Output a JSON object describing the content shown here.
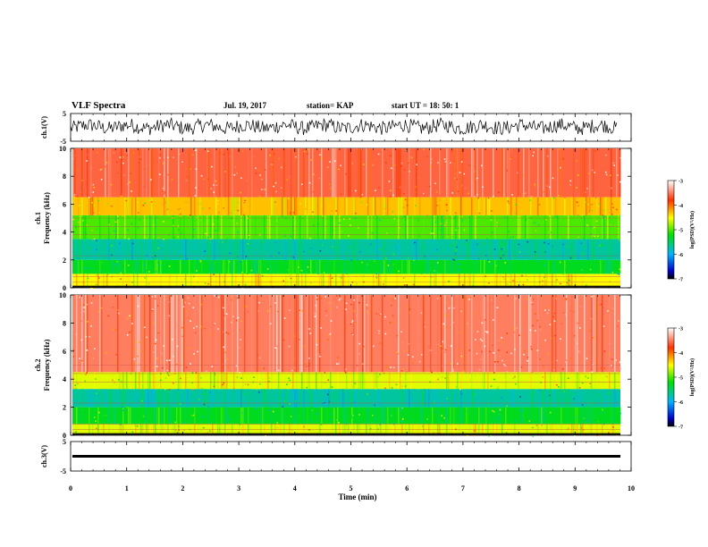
{
  "header": {
    "title": "VLF Spectra",
    "date": "Jul. 19, 2017",
    "station": "station= KAP",
    "start": "start UT =  18: 50: 1"
  },
  "chart_data": [
    {
      "type": "line",
      "panel": "ch1-voltage",
      "ylabel": "ch.1(V)",
      "ylim": [
        -5,
        5
      ],
      "yticks": [
        "5",
        "-5"
      ],
      "xlim": [
        0,
        10
      ],
      "description_values": "noisy waveform oscillating roughly between -2 and +3 V"
    },
    {
      "type": "heatmap",
      "panel": "ch1-spectrogram",
      "ylabel": "ch.1\nFrequency (kHz)",
      "ylabel_lines": [
        "ch.1",
        "Frequency (kHz)"
      ],
      "ylim": [
        0,
        10
      ],
      "yticks": [
        "0",
        "2",
        "4",
        "6",
        "8",
        "10"
      ],
      "xlim": [
        0,
        9.8
      ],
      "colorbar": {
        "label": "log(PSD)(V²/Hz)",
        "range": [
          -7,
          -3
        ],
        "ticks": [
          "-3",
          "-4",
          "-5",
          "-6",
          "-7"
        ]
      },
      "bands": [
        {
          "from_khz": 0,
          "to_khz": 1,
          "level": -4.5
        },
        {
          "from_khz": 1,
          "to_khz": 2,
          "level": -5.3
        },
        {
          "from_khz": 2,
          "to_khz": 3.5,
          "level": -5.7
        },
        {
          "from_khz": 3.5,
          "to_khz": 5.2,
          "level": -5.0
        },
        {
          "from_khz": 5.2,
          "to_khz": 6.5,
          "level": -4.3
        },
        {
          "from_khz": 6.5,
          "to_khz": 10,
          "level": -3.6
        }
      ]
    },
    {
      "type": "heatmap",
      "panel": "ch2-spectrogram",
      "ylabel_lines": [
        "ch.2",
        "Frequency (kHz)"
      ],
      "ylim": [
        0,
        10
      ],
      "yticks": [
        "0",
        "2",
        "4",
        "6",
        "8",
        "10"
      ],
      "xlim": [
        0,
        9.8
      ],
      "colorbar": {
        "label": "log(PSD)(V²/Hz)",
        "range": [
          -7,
          -3
        ],
        "ticks": [
          "-3",
          "-4",
          "-5",
          "-6",
          "-7"
        ]
      },
      "bands": [
        {
          "from_khz": 0,
          "to_khz": 0.8,
          "level": -4.6
        },
        {
          "from_khz": 0.8,
          "to_khz": 2,
          "level": -5.3
        },
        {
          "from_khz": 2,
          "to_khz": 3.3,
          "level": -5.7
        },
        {
          "from_khz": 3.3,
          "to_khz": 4.5,
          "level": -4.6
        },
        {
          "from_khz": 4.5,
          "to_khz": 10,
          "level": -3.5
        }
      ]
    },
    {
      "type": "line",
      "panel": "ch3-voltage",
      "ylabel": "ch.3(V)",
      "ylim": [
        -5,
        5
      ],
      "yticks": [
        "5",
        "-5"
      ],
      "xlim": [
        0,
        10
      ],
      "constant_value": 0
    }
  ],
  "xaxis": {
    "label": "Time (min)",
    "ticks": [
      "0",
      "1",
      "2",
      "3",
      "4",
      "5",
      "6",
      "7",
      "8",
      "9",
      "10"
    ]
  }
}
